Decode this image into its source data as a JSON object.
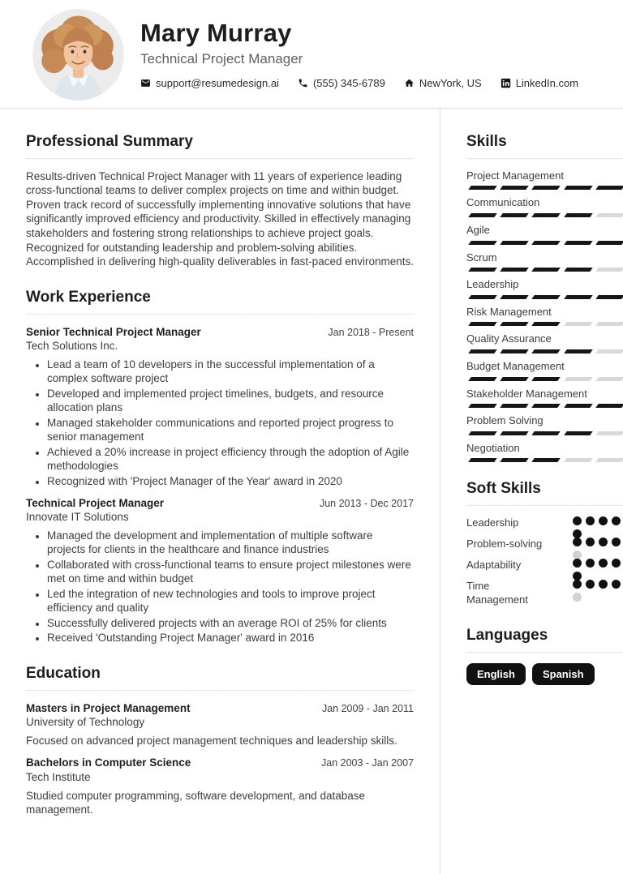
{
  "header": {
    "name": "Mary Murray",
    "title": "Technical Project Manager",
    "contacts": [
      {
        "icon": "envelope-icon",
        "text": "support@resumedesign.ai",
        "interactable": true
      },
      {
        "icon": "phone-icon",
        "text": "(555) 345-6789",
        "interactable": false
      },
      {
        "icon": "home-icon",
        "text": "NewYork, US",
        "interactable": false
      },
      {
        "icon": "linkedin-icon",
        "text": "LinkedIn.com",
        "interactable": true
      }
    ]
  },
  "main": {
    "summary": {
      "heading": "Professional Summary",
      "text": "Results-driven Technical Project Manager with 11 years of experience leading cross-functional teams to deliver complex projects on time and within budget. Proven track record of successfully implementing innovative solutions that have significantly improved efficiency and productivity. Skilled in effectively managing stakeholders and fostering strong relationships to achieve project goals. Recognized for outstanding leadership and problem-solving abilities. Accomplished in delivering high-quality deliverables in fast-paced environments."
    },
    "work": {
      "heading": "Work Experience",
      "jobs": [
        {
          "title": "Senior Technical Project Manager",
          "company": "Tech Solutions Inc.",
          "date": "Jan 2018 - Present",
          "bullets": [
            "Lead a team of 10 developers in the successful implementation of a complex software project",
            "Developed and implemented project timelines, budgets, and resource allocation plans",
            "Managed stakeholder communications and reported project progress to senior management",
            "Achieved a 20% increase in project efficiency through the adoption of Agile methodologies",
            "Recognized with 'Project Manager of the Year' award in 2020"
          ]
        },
        {
          "title": "Technical Project Manager",
          "company": "Innovate IT Solutions",
          "date": "Jun 2013 - Dec 2017",
          "bullets": [
            "Managed the development and implementation of multiple software projects for clients in the healthcare and finance industries",
            "Collaborated with cross-functional teams to ensure project milestones were met on time and within budget",
            "Led the integration of new technologies and tools to improve project efficiency and quality",
            "Successfully delivered projects with an average ROI of 25% for clients",
            "Received 'Outstanding Project Manager' award in 2016"
          ]
        }
      ]
    },
    "education": {
      "heading": "Education",
      "entries": [
        {
          "degree": "Masters in Project Management",
          "school": "University of Technology",
          "date": "Jan 2009 - Jan 2011",
          "description": "Focused on advanced project management techniques and leadership skills."
        },
        {
          "degree": "Bachelors in Computer Science",
          "school": "Tech Institute",
          "date": "Jan 2003 - Jan 2007",
          "description": "Studied computer programming, software development, and database management."
        }
      ]
    }
  },
  "sidebar": {
    "skills": {
      "heading": "Skills",
      "max": 5,
      "items": [
        {
          "name": "Project Management",
          "level": 5
        },
        {
          "name": "Communication",
          "level": 4
        },
        {
          "name": "Agile",
          "level": 5
        },
        {
          "name": "Scrum",
          "level": 4
        },
        {
          "name": "Leadership",
          "level": 5
        },
        {
          "name": "Risk Management",
          "level": 3
        },
        {
          "name": "Quality Assurance",
          "level": 4
        },
        {
          "name": "Budget Management",
          "level": 3
        },
        {
          "name": "Stakeholder Management",
          "level": 5
        },
        {
          "name": "Problem Solving",
          "level": 4
        },
        {
          "name": "Negotiation",
          "level": 3
        }
      ]
    },
    "soft_skills": {
      "heading": "Soft Skills",
      "max": 5,
      "items": [
        {
          "name": "Leadership",
          "level": 5
        },
        {
          "name": "Problem-solving",
          "level": 4
        },
        {
          "name": "Adaptability",
          "level": 5
        },
        {
          "name": "Time Management",
          "level": 4
        }
      ]
    },
    "languages": {
      "heading": "Languages",
      "items": [
        "English",
        "Spanish"
      ]
    }
  },
  "colors": {
    "accent": "#161616",
    "bar_empty": "#d9d9d9",
    "dot_empty": "#d2d2d2",
    "divider": "#dddddd",
    "badge_bg": "#111111",
    "badge_text": "#ffffff"
  }
}
